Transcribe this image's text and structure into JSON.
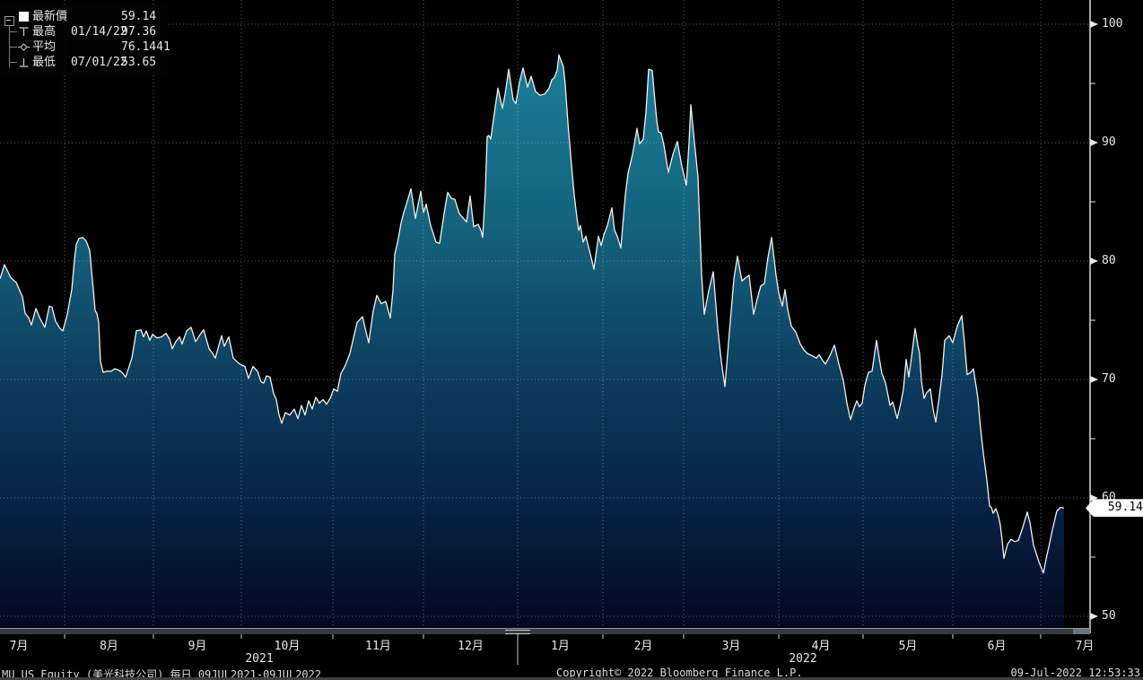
{
  "legend": {
    "rows": [
      {
        "label": "最新價",
        "value": "59.14"
      },
      {
        "label": "最高",
        "date": "01/14/22",
        "value": "97.36"
      },
      {
        "label": "平均",
        "value": "76.1441"
      },
      {
        "label": "最低",
        "date": "07/01/22",
        "value": "53.65"
      }
    ]
  },
  "axes": {
    "y": {
      "ticks": [
        100,
        90,
        80,
        70,
        60,
        50
      ]
    },
    "x": {
      "months": [
        "7月",
        "8月",
        "9月",
        "10月",
        "11月",
        "12月",
        "1月",
        "2月",
        "3月",
        "4月",
        "5月",
        "6月",
        "7月"
      ],
      "years": [
        "2021",
        "2022"
      ]
    }
  },
  "price_tag": "59.14",
  "footer": {
    "left": "MU US Equity (美光科技公司)  每日 09JUL2021-09JUL2022",
    "center": "Copyright© 2022 Bloomberg Finance L.P.",
    "right": "09-Jul-2022 12:53:33"
  },
  "chart_data": {
    "type": "area",
    "title": "MU US Equity (美光科技公司) 每日 09JUL2021-09JUL2022",
    "x_range": [
      "09JUL2021",
      "09JUL2022"
    ],
    "ylim": [
      48.6,
      102
    ],
    "y_ticks": [
      50,
      60,
      70,
      80,
      90,
      100
    ],
    "grid": true,
    "legend_position": "top-left",
    "last_price": 59.14,
    "high": {
      "date": "01/14/22",
      "value": 97.36
    },
    "average": 76.1441,
    "low": {
      "date": "07/01/22",
      "value": 53.65
    },
    "line_color": "#f2f2f2",
    "fill_gradient": [
      "#1d8099",
      "#177189",
      "#125a75",
      "#0c3b5b",
      "#072245",
      "#03081f"
    ],
    "points": [
      [
        0,
        78.5
      ],
      [
        5,
        79.7
      ],
      [
        12,
        78.6
      ],
      [
        18,
        78.2
      ],
      [
        25,
        77.0
      ],
      [
        28,
        75.6
      ],
      [
        32,
        75.2
      ],
      [
        35,
        74.6
      ],
      [
        40,
        76.0
      ],
      [
        45,
        75.1
      ],
      [
        50,
        74.4
      ],
      [
        55,
        76.2
      ],
      [
        58,
        76.1
      ],
      [
        62,
        74.9
      ],
      [
        67,
        74.3
      ],
      [
        70,
        74.1
      ],
      [
        75,
        75.5
      ],
      [
        80,
        77.6
      ],
      [
        83,
        80.1
      ],
      [
        85,
        81.4
      ],
      [
        88,
        81.9
      ],
      [
        92,
        82.0
      ],
      [
        96,
        81.7
      ],
      [
        100,
        80.9
      ],
      [
        102,
        79.2
      ],
      [
        104,
        77.6
      ],
      [
        106,
        75.8
      ],
      [
        108,
        75.6
      ],
      [
        110,
        74.8
      ],
      [
        112,
        71.5
      ],
      [
        115,
        70.6
      ],
      [
        119,
        70.7
      ],
      [
        124,
        70.7
      ],
      [
        128,
        70.9
      ],
      [
        132,
        70.8
      ],
      [
        136,
        70.6
      ],
      [
        140,
        70.2
      ],
      [
        147,
        71.8
      ],
      [
        152,
        74.1
      ],
      [
        157,
        74.2
      ],
      [
        160,
        73.6
      ],
      [
        163,
        74.1
      ],
      [
        167,
        73.3
      ],
      [
        170,
        73.8
      ],
      [
        175,
        73.5
      ],
      [
        180,
        73.6
      ],
      [
        185,
        73.9
      ],
      [
        189,
        73.4
      ],
      [
        192,
        72.6
      ],
      [
        196,
        73.2
      ],
      [
        200,
        73.6
      ],
      [
        203,
        73.0
      ],
      [
        208,
        74.1
      ],
      [
        213,
        74.4
      ],
      [
        218,
        73.2
      ],
      [
        223,
        73.8
      ],
      [
        227,
        74.2
      ],
      [
        233,
        72.6
      ],
      [
        237,
        72.2
      ],
      [
        240,
        71.8
      ],
      [
        247,
        73.7
      ],
      [
        250,
        72.8
      ],
      [
        255,
        73.6
      ],
      [
        260,
        71.8
      ],
      [
        267,
        71.3
      ],
      [
        273,
        71.1
      ],
      [
        277,
        70.1
      ],
      [
        282,
        71.1
      ],
      [
        287,
        70.7
      ],
      [
        291,
        69.8
      ],
      [
        294,
        69.7
      ],
      [
        297,
        70.3
      ],
      [
        301,
        70.2
      ],
      [
        305,
        68.8
      ],
      [
        308,
        68.3
      ],
      [
        311,
        67.0
      ],
      [
        314,
        66.3
      ],
      [
        318,
        67.2
      ],
      [
        323,
        67.0
      ],
      [
        328,
        67.5
      ],
      [
        332,
        66.7
      ],
      [
        336,
        67.8
      ],
      [
        340,
        67.0
      ],
      [
        344,
        68.2
      ],
      [
        348,
        67.5
      ],
      [
        352,
        68.5
      ],
      [
        356,
        68.0
      ],
      [
        360,
        68.3
      ],
      [
        364,
        67.9
      ],
      [
        368,
        68.4
      ],
      [
        372,
        69.2
      ],
      [
        376,
        69.0
      ],
      [
        380,
        70.5
      ],
      [
        385,
        71.2
      ],
      [
        390,
        72.2
      ],
      [
        394,
        73.5
      ],
      [
        398,
        74.8
      ],
      [
        404,
        75.3
      ],
      [
        408,
        74.0
      ],
      [
        411,
        73.1
      ],
      [
        416,
        75.8
      ],
      [
        420,
        77.1
      ],
      [
        425,
        76.4
      ],
      [
        430,
        76.6
      ],
      [
        435,
        75.2
      ],
      [
        438,
        77.5
      ],
      [
        440,
        80.6
      ],
      [
        443,
        81.5
      ],
      [
        447,
        83.2
      ],
      [
        450,
        84.1
      ],
      [
        453,
        84.8
      ],
      [
        458,
        86.1
      ],
      [
        463,
        83.6
      ],
      [
        469,
        85.9
      ],
      [
        472,
        84.1
      ],
      [
        475,
        84.8
      ],
      [
        480,
        83.0
      ],
      [
        486,
        81.6
      ],
      [
        490,
        81.5
      ],
      [
        495,
        84.0
      ],
      [
        499,
        85.8
      ],
      [
        503,
        85.3
      ],
      [
        507,
        85.2
      ],
      [
        512,
        84.0
      ],
      [
        520,
        83.3
      ],
      [
        524,
        85.5
      ],
      [
        528,
        82.9
      ],
      [
        533,
        83.1
      ],
      [
        536,
        82.6
      ],
      [
        538,
        82.0
      ],
      [
        541,
        86.0
      ],
      [
        543,
        90.5
      ],
      [
        545,
        90.6
      ],
      [
        547,
        90.3
      ],
      [
        551,
        92.5
      ],
      [
        555,
        94.6
      ],
      [
        560,
        92.9
      ],
      [
        563,
        94.1
      ],
      [
        567,
        96.2
      ],
      [
        572,
        93.6
      ],
      [
        575,
        93.3
      ],
      [
        579,
        95.1
      ],
      [
        583,
        96.3
      ],
      [
        588,
        94.7
      ],
      [
        592,
        95.6
      ],
      [
        597,
        94.3
      ],
      [
        602,
        94.0
      ],
      [
        607,
        94.1
      ],
      [
        612,
        94.6
      ],
      [
        615,
        95.3
      ],
      [
        618,
        95.5
      ],
      [
        621,
        96.1
      ],
      [
        623,
        97.4
      ],
      [
        626,
        96.8
      ],
      [
        628,
        96.4
      ],
      [
        630,
        94.9
      ],
      [
        633,
        91.7
      ],
      [
        637,
        88.1
      ],
      [
        640,
        85.6
      ],
      [
        643,
        83.7
      ],
      [
        645,
        82.6
      ],
      [
        647,
        83.0
      ],
      [
        650,
        81.6
      ],
      [
        653,
        82.1
      ],
      [
        658,
        80.6
      ],
      [
        662,
        79.3
      ],
      [
        667,
        82.1
      ],
      [
        670,
        81.3
      ],
      [
        673,
        82.2
      ],
      [
        677,
        83.0
      ],
      [
        682,
        84.5
      ],
      [
        685,
        82.6
      ],
      [
        688,
        82.1
      ],
      [
        692,
        81.1
      ],
      [
        697,
        85.6
      ],
      [
        700,
        87.4
      ],
      [
        705,
        89.0
      ],
      [
        710,
        91.2
      ],
      [
        713,
        89.9
      ],
      [
        717,
        90.3
      ],
      [
        720,
        92.6
      ],
      [
        723,
        96.2
      ],
      [
        727,
        96.1
      ],
      [
        730,
        93.5
      ],
      [
        732,
        91.9
      ],
      [
        734,
        90.9
      ],
      [
        737,
        90.8
      ],
      [
        740,
        89.8
      ],
      [
        745,
        87.5
      ],
      [
        750,
        89.0
      ],
      [
        755,
        90.1
      ],
      [
        760,
        88.0
      ],
      [
        765,
        86.4
      ],
      [
        768,
        90.0
      ],
      [
        770,
        93.2
      ],
      [
        773,
        90.8
      ],
      [
        778,
        87.1
      ],
      [
        782,
        78.8
      ],
      [
        785,
        75.5
      ],
      [
        790,
        77.5
      ],
      [
        795,
        79.1
      ],
      [
        800,
        74.3
      ],
      [
        804,
        71.5
      ],
      [
        808,
        69.4
      ],
      [
        813,
        74.0
      ],
      [
        818,
        78.5
      ],
      [
        822,
        80.4
      ],
      [
        827,
        78.3
      ],
      [
        831,
        78.6
      ],
      [
        835,
        78.8
      ],
      [
        840,
        75.5
      ],
      [
        844,
        76.8
      ],
      [
        848,
        77.9
      ],
      [
        852,
        78.1
      ],
      [
        856,
        80.3
      ],
      [
        860,
        82.0
      ],
      [
        865,
        78.8
      ],
      [
        868,
        77.3
      ],
      [
        872,
        76.2
      ],
      [
        875,
        77.6
      ],
      [
        878,
        75.9
      ],
      [
        882,
        74.5
      ],
      [
        887,
        74.0
      ],
      [
        892,
        73.0
      ],
      [
        896,
        72.5
      ],
      [
        900,
        72.2
      ],
      [
        905,
        72.0
      ],
      [
        910,
        71.8
      ],
      [
        913,
        72.1
      ],
      [
        917,
        71.6
      ],
      [
        920,
        71.3
      ],
      [
        925,
        72.0
      ],
      [
        930,
        72.9
      ],
      [
        935,
        71.3
      ],
      [
        940,
        69.9
      ],
      [
        944,
        68.0
      ],
      [
        948,
        66.6
      ],
      [
        952,
        67.6
      ],
      [
        955,
        68.2
      ],
      [
        958,
        67.7
      ],
      [
        961,
        68.0
      ],
      [
        964,
        69.5
      ],
      [
        968,
        70.6
      ],
      [
        972,
        70.7
      ],
      [
        977,
        73.3
      ],
      [
        980,
        71.8
      ],
      [
        983,
        70.5
      ],
      [
        987,
        69.7
      ],
      [
        990,
        68.6
      ],
      [
        992,
        67.8
      ],
      [
        995,
        68.1
      ],
      [
        1000,
        66.7
      ],
      [
        1004,
        68.0
      ],
      [
        1007,
        69.2
      ],
      [
        1010,
        71.7
      ],
      [
        1013,
        70.2
      ],
      [
        1016,
        71.9
      ],
      [
        1020,
        74.3
      ],
      [
        1023,
        72.9
      ],
      [
        1025,
        72.2
      ],
      [
        1027,
        69.9
      ],
      [
        1030,
        68.4
      ],
      [
        1033,
        68.9
      ],
      [
        1037,
        69.2
      ],
      [
        1040,
        67.5
      ],
      [
        1043,
        66.4
      ],
      [
        1047,
        68.6
      ],
      [
        1050,
        70.4
      ],
      [
        1053,
        73.3
      ],
      [
        1058,
        73.7
      ],
      [
        1062,
        73.1
      ],
      [
        1067,
        74.5
      ],
      [
        1072,
        75.4
      ],
      [
        1075,
        73.1
      ],
      [
        1078,
        70.4
      ],
      [
        1082,
        70.6
      ],
      [
        1085,
        70.9
      ],
      [
        1090,
        68.4
      ],
      [
        1093,
        65.8
      ],
      [
        1096,
        63.8
      ],
      [
        1100,
        61.5
      ],
      [
        1103,
        59.3
      ],
      [
        1105,
        59.2
      ],
      [
        1107,
        58.7
      ],
      [
        1110,
        59.1
      ],
      [
        1113,
        58.4
      ],
      [
        1115,
        57.7
      ],
      [
        1117,
        56.4
      ],
      [
        1119,
        54.9
      ],
      [
        1123,
        56.1
      ],
      [
        1127,
        56.5
      ],
      [
        1131,
        56.3
      ],
      [
        1135,
        56.4
      ],
      [
        1140,
        57.5
      ],
      [
        1145,
        58.8
      ],
      [
        1148,
        57.9
      ],
      [
        1152,
        56.0
      ],
      [
        1155,
        55.3
      ],
      [
        1158,
        54.6
      ],
      [
        1163,
        53.65
      ],
      [
        1167,
        55.2
      ],
      [
        1170,
        56.2
      ],
      [
        1173,
        57.3
      ],
      [
        1178,
        58.9
      ],
      [
        1182,
        59.2
      ],
      [
        1186,
        59.14
      ]
    ]
  }
}
